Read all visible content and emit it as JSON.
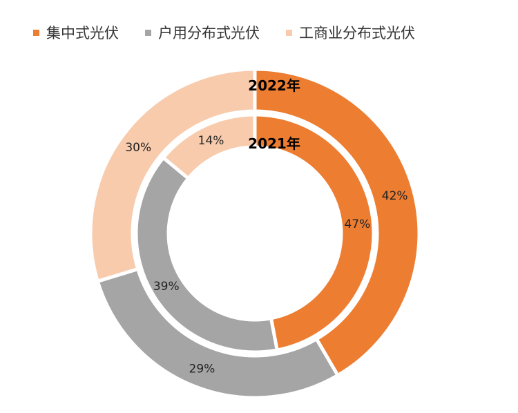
{
  "chart_data": {
    "type": "pie",
    "subtype": "double-donut",
    "legend_position": "top",
    "categories": [
      "集中式光伏",
      "户用分布式光伏",
      "工商业分布式光伏"
    ],
    "colors": [
      "#ED7D31",
      "#A5A5A5",
      "#F8CBAD"
    ],
    "series": [
      {
        "name": "2022年",
        "ring": "outer",
        "values": [
          42,
          29,
          30
        ],
        "labels": [
          "42%",
          "29%",
          "30%"
        ]
      },
      {
        "name": "2021年",
        "ring": "inner",
        "values": [
          47,
          39,
          14
        ],
        "labels": [
          "47%",
          "39%",
          "14%"
        ]
      }
    ]
  }
}
